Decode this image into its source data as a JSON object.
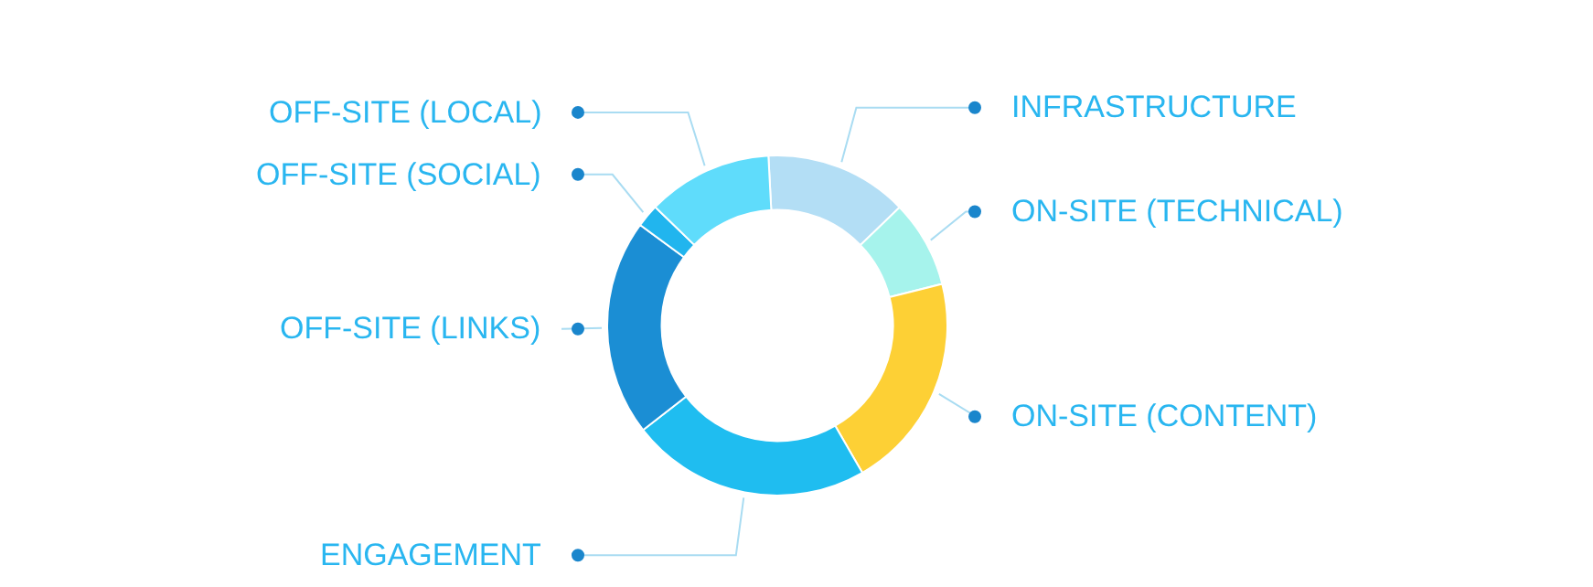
{
  "chart_data": {
    "type": "donut",
    "categories": [
      "INFRASTRUCTURE",
      "ON-SITE (TECHNICAL)",
      "ON-SITE (CONTENT)",
      "ENGAGEMENT",
      "OFF-SITE (LINKS)",
      "OFF-SITE (SOCIAL)",
      "OFF-SITE (LOCAL)"
    ],
    "values": [
      13.6,
      8.3,
      20.6,
      22.8,
      20.6,
      2.2,
      11.9
    ],
    "colors": [
      "#b3def5",
      "#a6f3ec",
      "#fdd035",
      "#1fbdf0",
      "#1b8ed4",
      "#21b5ee",
      "#5fdcfb"
    ]
  }
}
